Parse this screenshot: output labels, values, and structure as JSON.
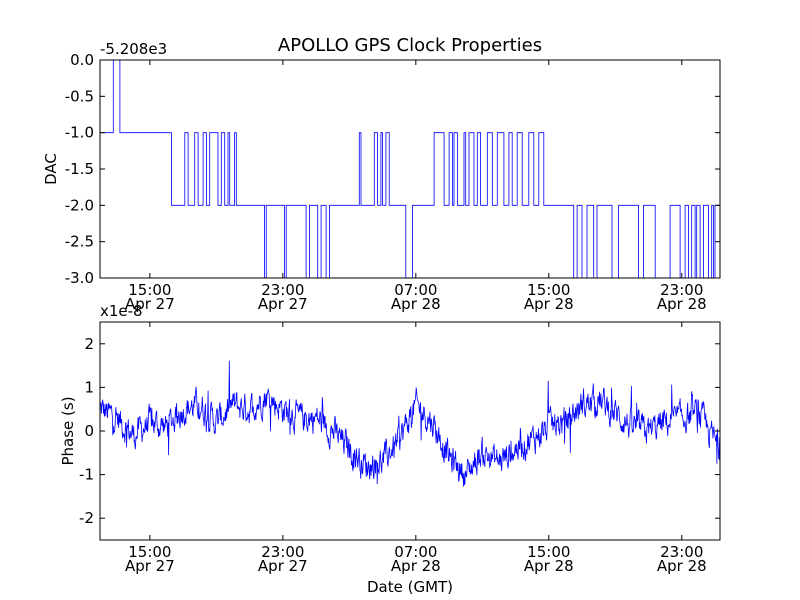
{
  "title": "APOLLO GPS Clock Properties",
  "chart_data": [
    {
      "type": "line",
      "name": "DAC",
      "ylabel": "DAC",
      "offset_label": "-5.208e3",
      "ylim": [
        -3.0,
        0.0
      ],
      "ytick_labels": [
        "0.0",
        "-0.5",
        "-1.0",
        "-1.5",
        "-2.0",
        "-2.5",
        "-3.0"
      ],
      "xtick_labels": [
        [
          "15:00",
          "Apr 27"
        ],
        [
          "23:00",
          "Apr 27"
        ],
        [
          "07:00",
          "Apr 28"
        ],
        [
          "15:00",
          "Apr 28"
        ],
        [
          "23:00",
          "Apr 28"
        ]
      ],
      "color": "#0000ff",
      "series_levels": [
        [
          0.0,
          -1
        ],
        [
          0.8,
          0
        ],
        [
          1.2,
          -1
        ],
        [
          4.3,
          -2
        ],
        [
          5.1,
          -1
        ],
        [
          5.3,
          -2
        ],
        [
          5.7,
          -1
        ],
        [
          5.9,
          -2
        ],
        [
          6.2,
          -1
        ],
        [
          6.4,
          -2
        ],
        [
          6.6,
          -1
        ],
        [
          7.1,
          -2
        ],
        [
          7.3,
          -1
        ],
        [
          7.5,
          -2
        ],
        [
          7.7,
          -1
        ],
        [
          7.8,
          -2
        ],
        [
          8.1,
          -1
        ],
        [
          8.2,
          -2
        ],
        [
          9.6,
          -2
        ],
        [
          9.9,
          -3
        ],
        [
          10.0,
          -2
        ],
        [
          10.8,
          -2
        ],
        [
          11.1,
          -3
        ],
        [
          11.2,
          -2
        ],
        [
          12.2,
          -2
        ],
        [
          12.4,
          -3
        ],
        [
          12.6,
          -2
        ],
        [
          12.9,
          -2
        ],
        [
          13.1,
          -3
        ],
        [
          13.3,
          -2
        ],
        [
          13.6,
          -3
        ],
        [
          13.8,
          -2
        ],
        [
          15.6,
          -1
        ],
        [
          15.7,
          -2
        ],
        [
          16.5,
          -1
        ],
        [
          16.7,
          -2
        ],
        [
          16.9,
          -1
        ],
        [
          17.0,
          -2
        ],
        [
          17.2,
          -1
        ],
        [
          17.4,
          -2
        ],
        [
          18.1,
          -2
        ],
        [
          18.4,
          -3
        ],
        [
          18.8,
          -2
        ],
        [
          20.1,
          -1
        ],
        [
          20.7,
          -2
        ],
        [
          21.0,
          -1
        ],
        [
          21.2,
          -2
        ],
        [
          21.3,
          -1
        ],
        [
          21.5,
          -2
        ],
        [
          21.9,
          -1
        ],
        [
          22.0,
          -2
        ],
        [
          22.2,
          -1
        ],
        [
          22.5,
          -2
        ],
        [
          22.7,
          -1
        ],
        [
          22.9,
          -2
        ],
        [
          23.3,
          -1
        ],
        [
          23.6,
          -2
        ],
        [
          23.9,
          -1
        ],
        [
          24.3,
          -2
        ],
        [
          24.6,
          -1
        ],
        [
          24.8,
          -2
        ],
        [
          25.1,
          -1
        ],
        [
          25.4,
          -2
        ],
        [
          25.8,
          -1
        ],
        [
          26.1,
          -2
        ],
        [
          26.4,
          -1
        ],
        [
          26.7,
          -2
        ],
        [
          28.2,
          -2
        ],
        [
          28.5,
          -3
        ],
        [
          28.7,
          -2
        ],
        [
          29.0,
          -3
        ],
        [
          29.3,
          -2
        ],
        [
          29.7,
          -3
        ],
        [
          29.9,
          -2
        ],
        [
          30.8,
          -3
        ],
        [
          31.2,
          -2
        ],
        [
          32.1,
          -2
        ],
        [
          32.4,
          -3
        ],
        [
          32.7,
          -2
        ],
        [
          33.1,
          -2
        ],
        [
          33.4,
          -3
        ],
        [
          34.0,
          -3
        ],
        [
          34.3,
          -2
        ],
        [
          34.6,
          -2
        ],
        [
          34.9,
          -3
        ],
        [
          35.2,
          -2
        ],
        [
          35.4,
          -3
        ],
        [
          35.6,
          -2
        ],
        [
          35.8,
          -3
        ],
        [
          35.9,
          -2
        ],
        [
          36.1,
          -3
        ],
        [
          36.3,
          -2
        ],
        [
          36.6,
          -3
        ],
        [
          36.8,
          -2
        ],
        [
          36.9,
          -3
        ],
        [
          37.0,
          -2
        ],
        [
          37.3,
          -2
        ]
      ]
    },
    {
      "type": "line",
      "name": "Phase",
      "ylabel": "Phase (s)",
      "xlabel": "Date (GMT)",
      "offset_label": "x1e-8",
      "ylim": [
        -2.5,
        2.5
      ],
      "ytick_labels": [
        "2",
        "1",
        "0",
        "-1",
        "-2"
      ],
      "xtick_labels": [
        [
          "15:00",
          "Apr 27"
        ],
        [
          "23:00",
          "Apr 27"
        ],
        [
          "07:00",
          "Apr 28"
        ],
        [
          "15:00",
          "Apr 28"
        ],
        [
          "23:00",
          "Apr 28"
        ]
      ],
      "color": "#0000ff",
      "trend_points": [
        [
          0.0,
          0.5
        ],
        [
          1.0,
          0.3
        ],
        [
          2.0,
          -0.1
        ],
        [
          3.0,
          0.2
        ],
        [
          4.0,
          0.1
        ],
        [
          5.0,
          0.5
        ],
        [
          6.0,
          0.6
        ],
        [
          7.0,
          0.2
        ],
        [
          8.0,
          0.6
        ],
        [
          9.0,
          0.5
        ],
        [
          10.0,
          0.8
        ],
        [
          11.0,
          0.5
        ],
        [
          12.0,
          0.3
        ],
        [
          13.0,
          0.3
        ],
        [
          14.0,
          0.0
        ],
        [
          15.0,
          -0.4
        ],
        [
          16.0,
          -0.8
        ],
        [
          17.0,
          -0.7
        ],
        [
          18.0,
          -0.2
        ],
        [
          19.0,
          0.6
        ],
        [
          20.0,
          0.2
        ],
        [
          21.0,
          -0.6
        ],
        [
          22.0,
          -1.0
        ],
        [
          23.0,
          -0.5
        ],
        [
          24.0,
          -0.7
        ],
        [
          25.0,
          -0.4
        ],
        [
          26.0,
          -0.2
        ],
        [
          27.0,
          0.1
        ],
        [
          28.0,
          0.2
        ],
        [
          29.0,
          0.6
        ],
        [
          30.0,
          0.7
        ],
        [
          31.0,
          0.4
        ],
        [
          32.0,
          0.1
        ],
        [
          33.0,
          0.0
        ],
        [
          34.0,
          0.2
        ],
        [
          35.0,
          0.3
        ],
        [
          36.0,
          0.4
        ],
        [
          37.3,
          -0.4
        ]
      ],
      "noise_amplitude": 0.45
    }
  ]
}
